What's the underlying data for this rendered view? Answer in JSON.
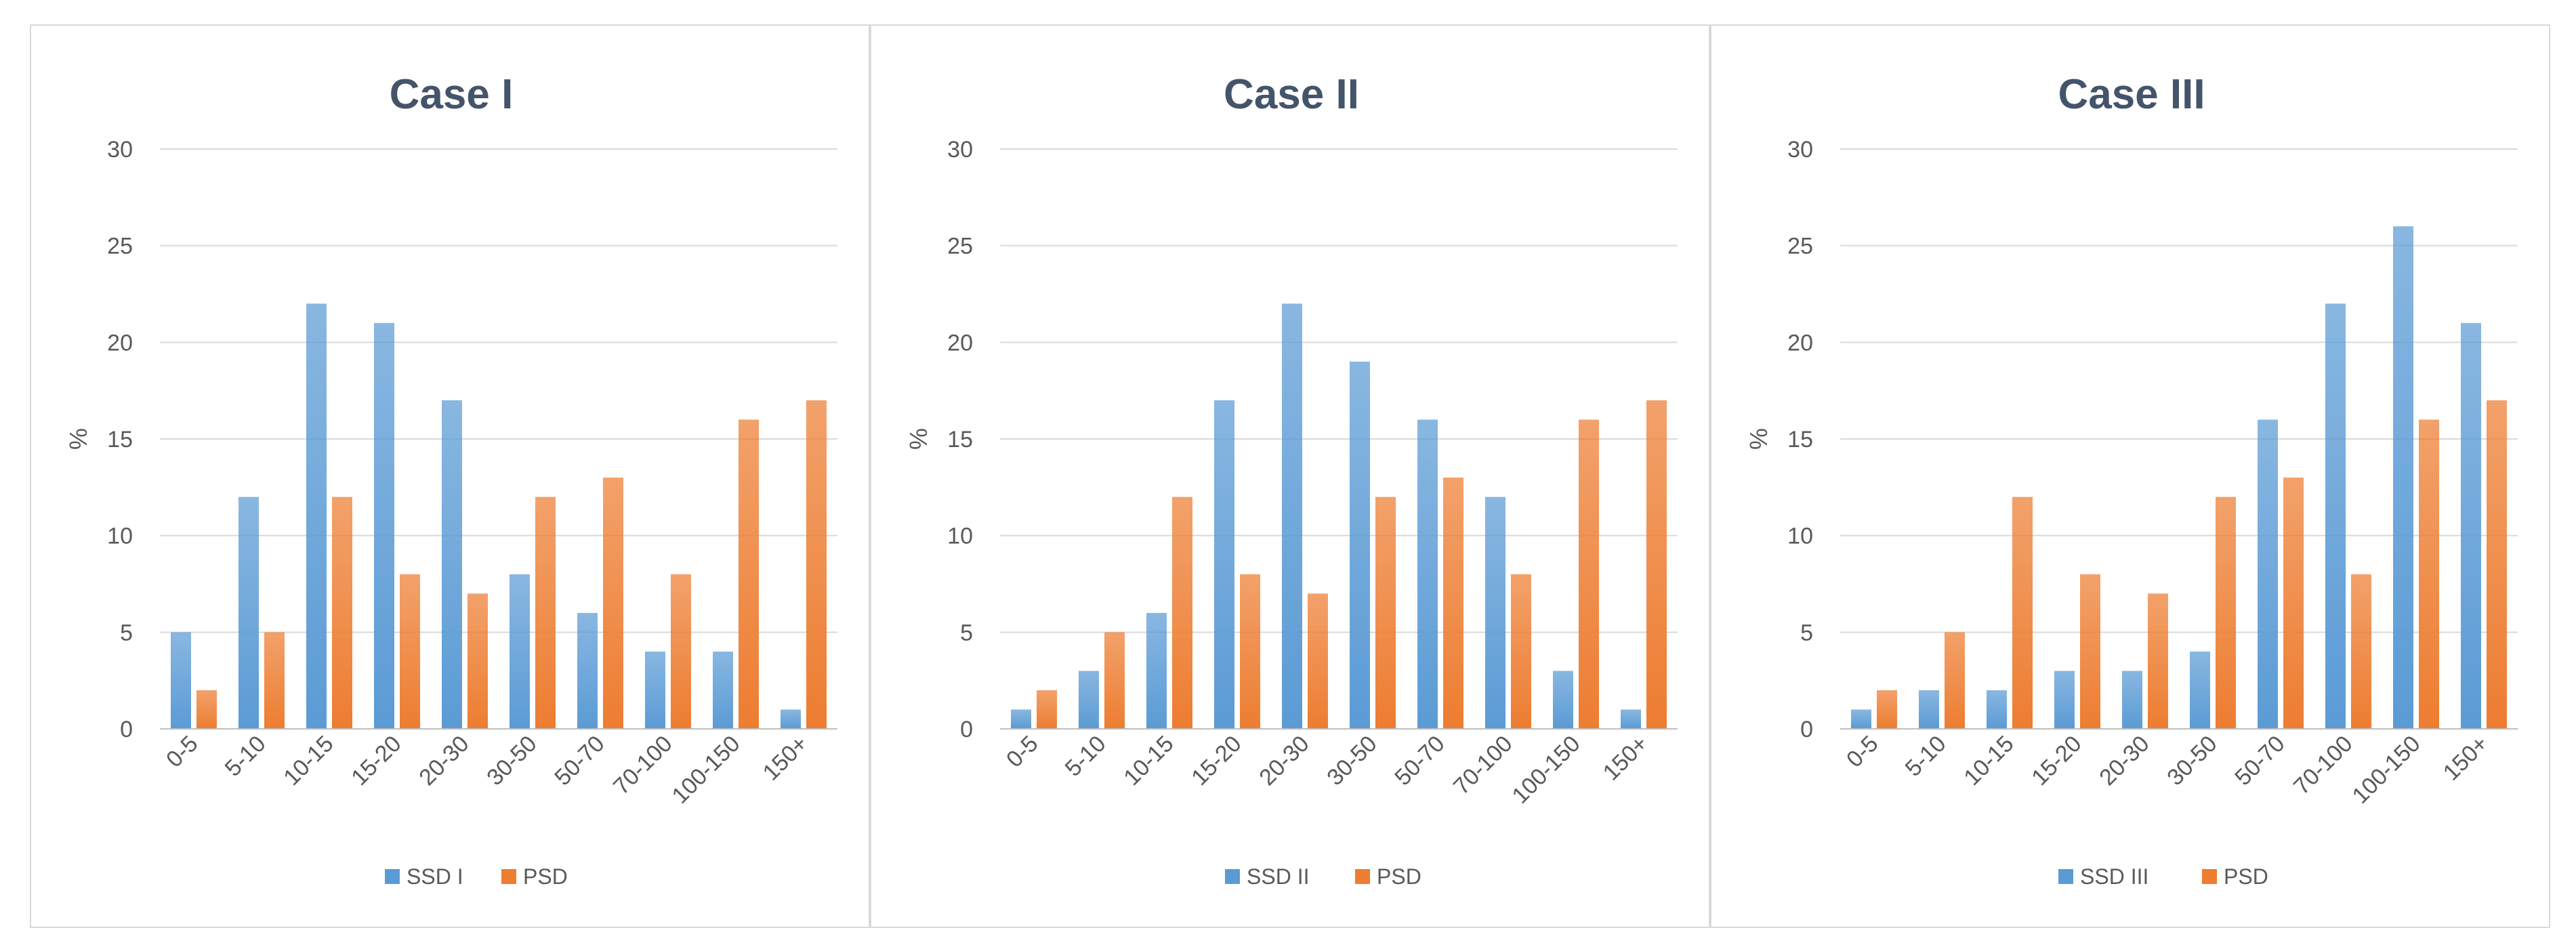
{
  "chart_data": [
    {
      "type": "bar",
      "title": "Case I",
      "xlabel": "",
      "ylabel": "%",
      "ylim": [
        0,
        30
      ],
      "yticks": [
        0,
        5,
        10,
        15,
        20,
        25,
        30
      ],
      "grid": true,
      "legend_position": "bottom",
      "categories": [
        "0-5",
        "5-10",
        "10-15",
        "15-20",
        "20-30",
        "30-50",
        "50-70",
        "70-100",
        "100-150",
        "150+"
      ],
      "series": [
        {
          "name": "SSD I",
          "color": "#5b9bd5",
          "values": [
            5,
            12,
            22,
            21,
            17,
            8,
            6,
            4,
            4,
            1
          ]
        },
        {
          "name": "PSD",
          "color": "#ed7d31",
          "values": [
            2,
            5,
            12,
            8,
            7,
            12,
            13,
            8,
            16,
            17
          ]
        }
      ]
    },
    {
      "type": "bar",
      "title": "Case II",
      "xlabel": "",
      "ylabel": "%",
      "ylim": [
        0,
        30
      ],
      "yticks": [
        0,
        5,
        10,
        15,
        20,
        25,
        30
      ],
      "grid": true,
      "legend_position": "bottom",
      "categories": [
        "0-5",
        "5-10",
        "10-15",
        "15-20",
        "20-30",
        "30-50",
        "50-70",
        "70-100",
        "100-150",
        "150+"
      ],
      "series": [
        {
          "name": "SSD II",
          "color": "#5b9bd5",
          "values": [
            1,
            3,
            6,
            17,
            22,
            19,
            16,
            12,
            3,
            1
          ]
        },
        {
          "name": "PSD",
          "color": "#ed7d31",
          "values": [
            2,
            5,
            12,
            8,
            7,
            12,
            13,
            8,
            16,
            17
          ]
        }
      ]
    },
    {
      "type": "bar",
      "title": "Case III",
      "xlabel": "",
      "ylabel": "%",
      "ylim": [
        0,
        30
      ],
      "yticks": [
        0,
        5,
        10,
        15,
        20,
        25,
        30
      ],
      "grid": true,
      "legend_position": "bottom",
      "categories": [
        "0-5",
        "5-10",
        "10-15",
        "15-20",
        "20-30",
        "30-50",
        "50-70",
        "70-100",
        "100-150",
        "150+"
      ],
      "series": [
        {
          "name": "SSD III",
          "color": "#5b9bd5",
          "values": [
            1,
            2,
            2,
            3,
            3,
            4,
            16,
            22,
            26,
            21
          ]
        },
        {
          "name": "PSD",
          "color": "#ed7d31",
          "values": [
            2,
            5,
            12,
            8,
            7,
            12,
            13,
            8,
            16,
            17
          ]
        }
      ]
    }
  ]
}
